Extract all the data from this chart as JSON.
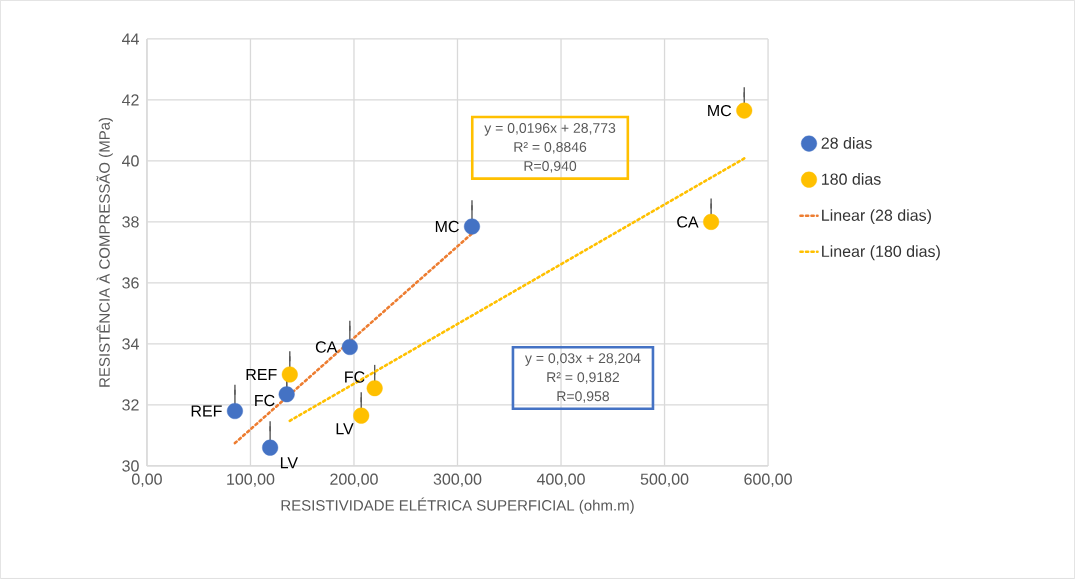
{
  "chart_data": {
    "type": "scatter",
    "xlabel": "RESISTIVIDADE ELÉTRICA SUPERFICIAL (ohm.m)",
    "ylabel": "RESISTÊNCIA À COMPRESSÃO (MPa)",
    "xlim": [
      0,
      600
    ],
    "ylim": [
      30,
      44
    ],
    "xticks": [
      {
        "value": 0,
        "label": "0,00"
      },
      {
        "value": 100,
        "label": "100,00"
      },
      {
        "value": 200,
        "label": "200,00"
      },
      {
        "value": 300,
        "label": "300,00"
      },
      {
        "value": 400,
        "label": "400,00"
      },
      {
        "value": 500,
        "label": "500,00"
      },
      {
        "value": 600,
        "label": "600,00"
      }
    ],
    "yticks": [
      30,
      32,
      34,
      36,
      38,
      40,
      42,
      44
    ],
    "grid": true,
    "legend": "right",
    "series": [
      {
        "name": "28 dias",
        "color": "#4472c4",
        "marker": "circle",
        "x": [
          85,
          119,
          135,
          196,
          314
        ],
        "values": [
          31.8,
          30.6,
          32.35,
          33.9,
          37.85
        ],
        "errors": [
          [
            31.8,
            32.5
          ],
          [
            30.6,
            31.3
          ],
          [
            32.35,
            32.75
          ],
          [
            33.9,
            34.6
          ],
          [
            37.85,
            38.55
          ]
        ]
      },
      {
        "name": "180 dias",
        "color": "#ffc000",
        "marker": "circle",
        "x": [
          138,
          207,
          220,
          545,
          577
        ],
        "values": [
          33.0,
          31.65,
          32.55,
          38.0,
          41.65
        ],
        "errors": [
          [
            33.0,
            33.6
          ],
          [
            31.65,
            32.25
          ],
          [
            32.55,
            33.15
          ],
          [
            38.0,
            38.6
          ],
          [
            41.65,
            42.25
          ]
        ]
      },
      {
        "name": "Linear (28 dias)",
        "type": "line",
        "color": "#ed7d31",
        "line_style": "dotted",
        "marker": "none",
        "x": [
          85,
          314
        ],
        "values": [
          30.75,
          37.62
        ]
      },
      {
        "name": "Linear (180 dias)",
        "type": "line",
        "color": "#ffc000",
        "line_style": "dotted",
        "marker": "none",
        "x": [
          138,
          577
        ],
        "values": [
          31.48,
          40.08
        ]
      }
    ],
    "annotations": [
      "y = 0,0196x + 28,773",
      "R² = 0,8846",
      "R=0,940",
      "y = 0,03x + 28,204",
      "R² = 0,9182",
      "R=0,958",
      {
        "text": "REF",
        "x": 85,
        "y": 31.8
      },
      {
        "text": "LV",
        "x": 119,
        "y": 30.6
      },
      {
        "text": "FC",
        "x": 135,
        "y": 32.35
      },
      {
        "text": "CA",
        "x": 196,
        "y": 33.9
      },
      {
        "text": "MC",
        "x": 314,
        "y": 37.85
      },
      {
        "text": "REF",
        "x": 138,
        "y": 33.0
      },
      {
        "text": "LV",
        "x": 207,
        "y": 31.65
      },
      {
        "text": "FC",
        "x": 220,
        "y": 32.55
      },
      {
        "text": "CA",
        "x": 545,
        "y": 38.0
      },
      {
        "text": "MC",
        "x": 577,
        "y": 41.65
      }
    ]
  }
}
